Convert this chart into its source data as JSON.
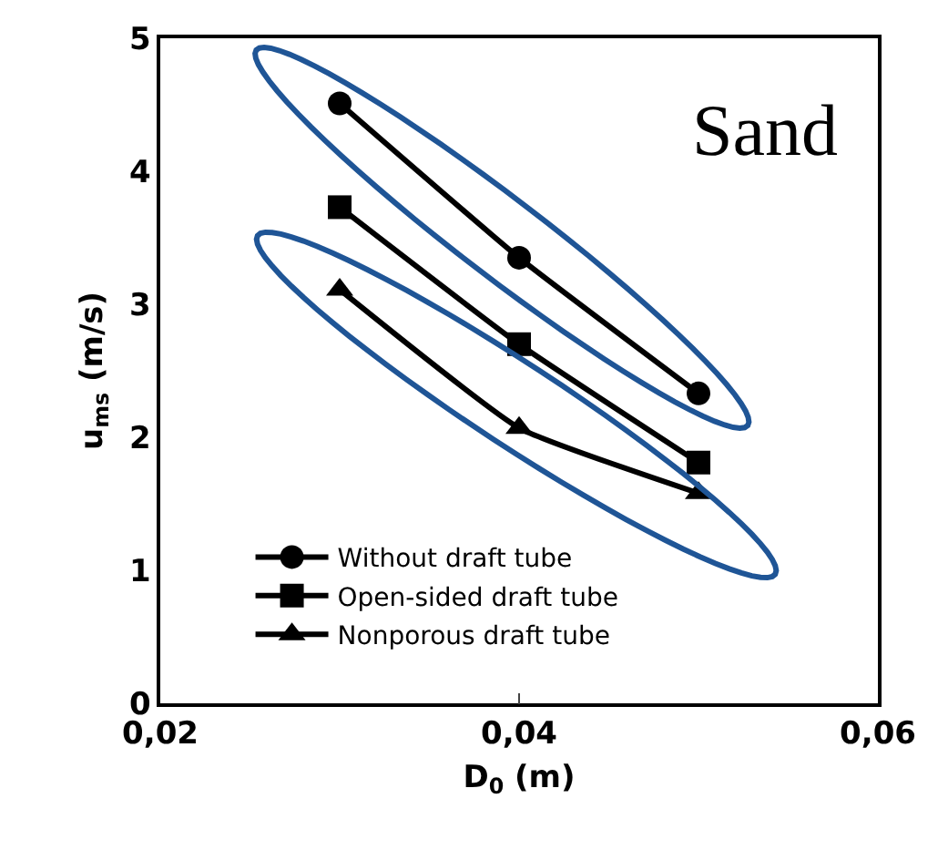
{
  "chart_data": {
    "type": "line",
    "xlabel": "D$_{0}$ (m)",
    "ylabel": "u$_{ms}$ (m/s)",
    "x": [
      0.03,
      0.04,
      0.05
    ],
    "series": [
      {
        "name": "Without draft tube",
        "color": "#000000",
        "marker": "circle",
        "values": [
          4.51,
          3.35,
          2.33
        ]
      },
      {
        "name": "Open-sided draft tube",
        "color": "#000000",
        "marker": "square",
        "values": [
          3.73,
          2.7,
          1.81
        ]
      },
      {
        "name": "Nonporous draft tube",
        "color": "#000000",
        "marker": "triangle",
        "values": [
          3.11,
          2.07,
          1.58
        ]
      }
    ],
    "xlim": [
      0.02,
      0.06
    ],
    "xticks": [
      {
        "value": 0.02,
        "label": "0,02"
      },
      {
        "value": 0.04,
        "label": "0,04"
      },
      {
        "value": 0.06,
        "label": "0,06"
      }
    ],
    "ylim": [
      0,
      5
    ],
    "yticks": [
      0,
      1,
      2,
      3,
      4,
      5
    ],
    "annotations": [
      "Sand"
    ],
    "legend": "bottom left",
    "line_style": "solid"
  }
}
